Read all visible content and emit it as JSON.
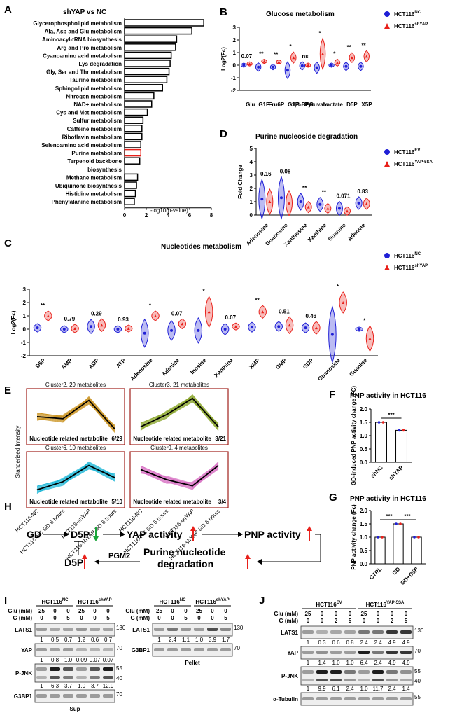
{
  "panels": {
    "A": {
      "label": "A",
      "title": "shYAP vs NC",
      "xlabel": "-log10(p-value)",
      "xticks": [
        "0",
        "2",
        "4",
        "6",
        "8"
      ],
      "pathways": [
        {
          "name": "Glycerophospholipid metabolism",
          "value": 7.3
        },
        {
          "name": "Ala, Asp and Glu metabolism",
          "value": 6.2
        },
        {
          "name": "Aminoacyl-tRNA biosynthesis",
          "value": 4.8
        },
        {
          "name": "Arg and Pro metabolism",
          "value": 4.7
        },
        {
          "name": "Cyanoamino acid metabolism",
          "value": 4.3
        },
        {
          "name": "Lys degradation",
          "value": 4.2
        },
        {
          "name": "Gly, Ser and Thr metabolism",
          "value": 4.1
        },
        {
          "name": "Taurine metabolism",
          "value": 3.9
        },
        {
          "name": "Sphingolipid metabolism",
          "value": 3.5
        },
        {
          "name": "Nitrogen metabolism",
          "value": 2.7
        },
        {
          "name": "NAD+ metabolism",
          "value": 2.5
        },
        {
          "name": "Cys and Met metabolism",
          "value": 2.1
        },
        {
          "name": "Sulfur metabolism",
          "value": 1.7
        },
        {
          "name": "Caffeine metabolism",
          "value": 1.6
        },
        {
          "name": "Riboflavin metabolism",
          "value": 1.6
        },
        {
          "name": "Selenoamino acid metabolism",
          "value": 1.5
        },
        {
          "name": "Purine metabolism",
          "value": 1.5,
          "highlight": true
        },
        {
          "name": "Terpenoid backbone",
          "value": 1.4
        },
        {
          "name": "biosynthesis",
          "value": null
        },
        {
          "name": "Methane metabolism",
          "value": 1.2
        },
        {
          "name": "Ubiquinone biosynthesis",
          "value": 1.1
        },
        {
          "name": "Histidine metabolism",
          "value": 1.0
        },
        {
          "name": "Phenylalanine metabolism",
          "value": 0.9
        }
      ]
    },
    "B": {
      "label": "B",
      "title": "Glucose metabolism",
      "ylabel": "Log2(Fc)",
      "yticks": [
        "3",
        "2",
        "1",
        "0",
        "-1",
        "-2"
      ],
      "legend": [
        {
          "name": "HCT116",
          "sup": "NC",
          "color": "#1f1fd6"
        },
        {
          "name": "HCT116",
          "sup": "shYAP",
          "color": "#e8201a"
        }
      ],
      "categories": [
        "Glu",
        "G1P",
        "Fru6P",
        "G3P",
        "1,3-BPG",
        "Pyruvate",
        "Lactate",
        "D5P",
        "X5P"
      ],
      "sig": [
        "0.07",
        "**",
        "**",
        "*",
        "ns",
        "*",
        "*",
        "**",
        "**"
      ],
      "nc": [
        0,
        -0.15,
        -0.15,
        -0.4,
        -0.05,
        -0.2,
        0,
        -0.1,
        -0.1
      ],
      "shyap": [
        0.1,
        0.3,
        0.25,
        0.6,
        0,
        0.9,
        0.2,
        0.6,
        0.7
      ]
    },
    "C": {
      "label": "C",
      "title": "Nucleotides metabolism",
      "ylabel": "Log2(Fc)",
      "yticks": [
        "3",
        "2",
        "1",
        "0",
        "-1",
        "-2"
      ],
      "legend": [
        {
          "name": "HCT116",
          "sup": "NC",
          "color": "#1f1fd6"
        },
        {
          "name": "HCT116",
          "sup": "shYAP",
          "color": "#e8201a"
        }
      ],
      "categories": [
        "D5P",
        "AMP",
        "ADP",
        "ATP",
        "Adenosine",
        "Adenine",
        "Inosine",
        "Xanthine",
        "XMP",
        "GMP",
        "GDP",
        "Guanosine",
        "Guanine"
      ],
      "sig": [
        "**",
        "0.79",
        "0.29",
        "0.93",
        "*",
        "0.07",
        "*",
        "0.07",
        "**",
        "0.51",
        "0.46",
        "*",
        "*"
      ],
      "nc": [
        0.1,
        0,
        0.2,
        0,
        -0.3,
        -0.1,
        -0.1,
        0,
        0.15,
        0.2,
        0.1,
        -0.4,
        0
      ],
      "shyap": [
        1.0,
        0.05,
        0.3,
        0.05,
        1.0,
        0.4,
        1.3,
        0.2,
        1.3,
        0.3,
        0.1,
        2.0,
        -0.7
      ]
    },
    "D": {
      "label": "D",
      "title": "Purine nucleoside degradation",
      "ylabel": "Fold Change",
      "yticks": [
        "5",
        "4",
        "3",
        "2",
        "1",
        "0"
      ],
      "legend": [
        {
          "name": "HCT116",
          "sup": "EV",
          "color": "#1f1fd6"
        },
        {
          "name": "HCT116",
          "sup": "YAP-5SA",
          "color": "#e8201a"
        }
      ],
      "categories": [
        "Adenosine",
        "Guanosine",
        "Xanthosine",
        "Xanthine",
        "Guanine",
        "Adenine"
      ],
      "sig": [
        "0.16",
        "0.08",
        "**",
        "**",
        "0.071",
        "0.83"
      ],
      "ev": [
        1.2,
        1.3,
        1.0,
        0.8,
        0.5,
        0.9
      ],
      "yap": [
        1.0,
        0.9,
        0.6,
        0.5,
        0.3,
        0.85
      ]
    },
    "E": {
      "label": "E",
      "ylabel": "Standerised Intensity",
      "clusters": [
        {
          "title": "Cluster2, 29 metabolites",
          "note": "Nucleotide related metabolite",
          "ratio": "6/29",
          "color": "#c8901a"
        },
        {
          "title": "Cluster3, 21 metabolites",
          "note": "Nucleotide related metabolite",
          "ratio": "3/21",
          "color": "#8aa52a"
        },
        {
          "title": "Cluster6, 10 metabolites",
          "note": "Nucleotide related metabolite",
          "ratio": "5/10",
          "color": "#19b5d6"
        },
        {
          "title": "Cluster9, 4 metabolites",
          "note": "Nucleotide related metabolite",
          "ratio": "3/4",
          "color": "#d66ac0"
        }
      ],
      "xlabels": [
        "HCT116-NC",
        "HCT116-NC GD 6 hours",
        "HCT116-shYAP",
        "HCT116-shYAP GD 6 hours"
      ]
    },
    "F": {
      "label": "F",
      "title": "PNP activity in HCT116",
      "ylabel": "GD-induced PNP activity change (FC)",
      "yticks": [
        "2.0",
        "1.5",
        "1.0",
        "0.5",
        "0.0"
      ],
      "categories": [
        "shNC",
        "shYAP"
      ],
      "values": [
        1.5,
        1.2
      ],
      "sig": "***"
    },
    "G": {
      "label": "G",
      "title": "PNP activity in HCT116",
      "ylabel": "PNP activity change (Fc)",
      "yticks": [
        "2.0",
        "1.5",
        "1.0",
        "0.5",
        "0.0"
      ],
      "categories": [
        "CTRL",
        "GD",
        "GD+D5P"
      ],
      "values": [
        1.0,
        1.5,
        1.0
      ],
      "sig": [
        "***",
        "***"
      ]
    },
    "H": {
      "label": "H",
      "nodes": {
        "gd": "GD",
        "d5p_top": "D5P",
        "yap": "YAP activity",
        "pnp": "PNP activity",
        "d5p_bottom": "D5P",
        "pgm2": "PGM2",
        "purine": "Purine nucleotide",
        "degradation": "degradation"
      }
    },
    "I": {
      "label": "I",
      "sup": {
        "groups": [
          {
            "name": "HCT116",
            "sup": "NC"
          },
          {
            "name": "HCT116",
            "sup": "shYAP"
          }
        ],
        "glu": [
          "25",
          "0",
          "0",
          "25",
          "0",
          "0"
        ],
        "g": [
          "0",
          "0",
          "5",
          "0",
          "0",
          "5"
        ],
        "blots": [
          {
            "name": "LATS1",
            "mw": "130",
            "quant": [
              "1",
              "0.5",
              "0.7",
              "1.2",
              "0.6",
              "0.7"
            ]
          },
          {
            "name": "YAP",
            "mw": "70",
            "quant": [
              "1",
              "0.8",
              "1.0",
              "0.09",
              "0.07",
              "0.07"
            ]
          },
          {
            "name": "P-JNK",
            "mw": "55",
            "mw2": "40",
            "quant": [
              "1",
              "6.3",
              "3.7",
              "1.0",
              "3.7",
              "12.9"
            ]
          },
          {
            "name": "G3BP1",
            "mw": "70",
            "quant": []
          }
        ],
        "footer": "Sup"
      },
      "pellet": {
        "groups": [
          {
            "name": "HCT116",
            "sup": "NC"
          },
          {
            "name": "HCT116",
            "sup": "shYAP"
          }
        ],
        "glu": [
          "25",
          "0",
          "0",
          "25",
          "0",
          "0"
        ],
        "g": [
          "0",
          "0",
          "5",
          "0",
          "0",
          "5"
        ],
        "blots": [
          {
            "name": "LATS1",
            "mw": "130",
            "quant": [
              "1",
              "2.4",
              "1.1",
              "1.0",
              "3.9",
              "1.7"
            ]
          },
          {
            "name": "G3BP1",
            "mw": "70",
            "quant": []
          }
        ],
        "footer": "Pellet"
      },
      "row_labels": {
        "glu": "Glu (mM)",
        "g": "G (mM)"
      }
    },
    "J": {
      "label": "J",
      "groups": [
        {
          "name": "HCT116",
          "sup": "EV"
        },
        {
          "name": "HCT116",
          "sup": "YAP-5SA"
        }
      ],
      "glu": [
        "25",
        "0",
        "0",
        "0",
        "25",
        "0",
        "0",
        "0"
      ],
      "g": [
        "0",
        "0",
        "2",
        "5",
        "0",
        "0",
        "2",
        "5"
      ],
      "row_labels": {
        "glu": "Glu (mM)",
        "g": "G (mM)"
      },
      "blots": [
        {
          "name": "LATS1",
          "mw": "130",
          "quant": [
            "1",
            "0.3",
            "0.6",
            "0.8",
            "2.4",
            "2.4",
            "4.9",
            "4.9"
          ]
        },
        {
          "name": "YAP",
          "mw": "70",
          "quant": [
            "1",
            "1.4",
            "1.0",
            "1.0",
            "6.4",
            "2.4",
            "4.9",
            "4.9"
          ]
        },
        {
          "name": "P-JNK",
          "mw": "55",
          "mw2": "40",
          "quant": [
            "1",
            "9.9",
            "6.1",
            "2.4",
            "1.0",
            "11.7",
            "2.4",
            "1.4"
          ]
        },
        {
          "name": "α-Tubulin",
          "mw": "55",
          "quant": []
        }
      ]
    }
  },
  "colors": {
    "nc": "#1f1fd6",
    "shyap": "#e8201a",
    "highlight": "#e8201a",
    "ratio": "#1f7fd0",
    "frame": "#a0201a"
  }
}
